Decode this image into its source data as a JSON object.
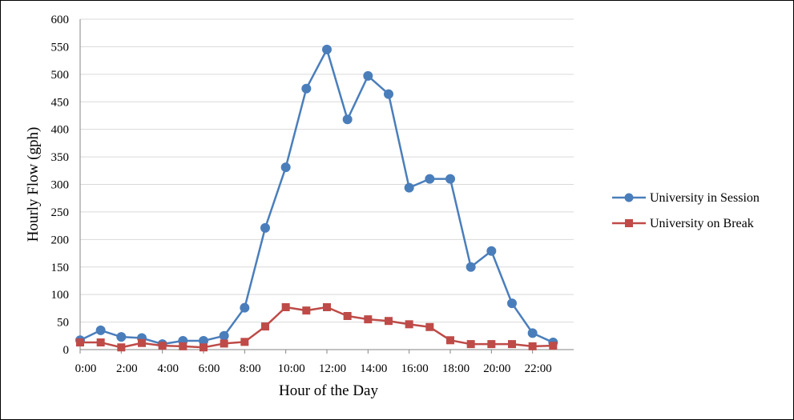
{
  "chart_data": {
    "type": "line",
    "title": "",
    "xlabel": "Hour of the Day",
    "ylabel": "Hourly Flow (gph)",
    "ylim": [
      0,
      600
    ],
    "yticks": [
      "0",
      "50",
      "100",
      "150",
      "200",
      "250",
      "300",
      "350",
      "400",
      "450",
      "500",
      "550",
      "600"
    ],
    "x": [
      0,
      1,
      2,
      3,
      4,
      5,
      6,
      7,
      8,
      9,
      10,
      11,
      12,
      13,
      14,
      15,
      16,
      17,
      18,
      19,
      20,
      21,
      22,
      23
    ],
    "xtick_labels": [
      "0:00",
      "2:00",
      "4:00",
      "6:00",
      "8:00",
      "10:00",
      "12:00",
      "14:00",
      "16:00",
      "18:00",
      "20:00",
      "22:00"
    ],
    "grid": "horizontal",
    "legend_position": "right",
    "series": [
      {
        "name": "University in Session",
        "color": "#4a7ebb",
        "marker": "circle",
        "values": [
          17,
          35,
          23,
          21,
          10,
          16,
          16,
          25,
          76,
          221,
          331,
          474,
          545,
          418,
          497,
          464,
          294,
          310,
          310,
          150,
          179,
          84,
          30,
          13
        ]
      },
      {
        "name": "University on Break",
        "color": "#be4b48",
        "marker": "square",
        "values": [
          13,
          13,
          4,
          12,
          7,
          6,
          4,
          11,
          14,
          42,
          77,
          71,
          77,
          61,
          55,
          52,
          46,
          41,
          17,
          10,
          10,
          10,
          6,
          7
        ]
      }
    ]
  }
}
